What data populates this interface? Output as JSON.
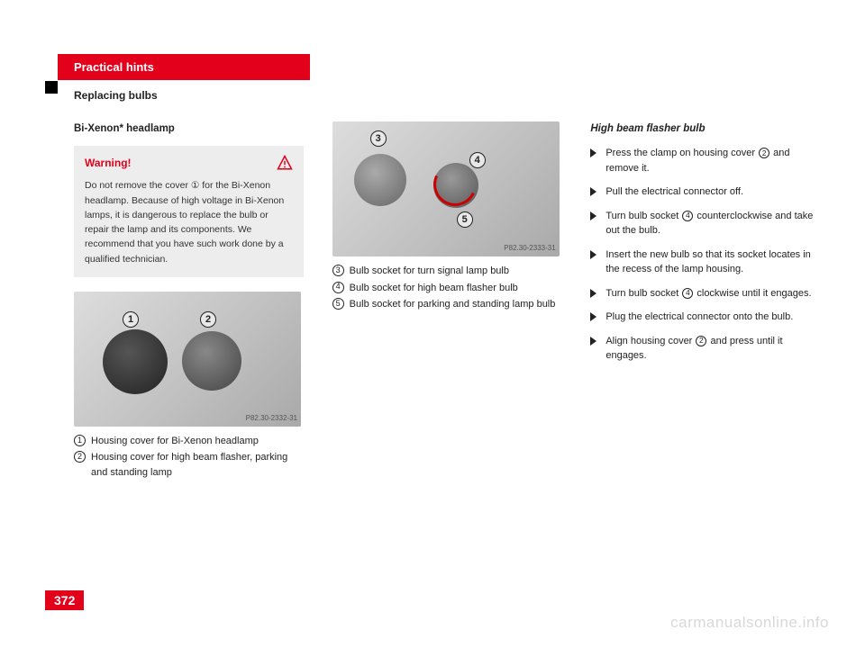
{
  "header": {
    "chapter": "Practical hints",
    "section": "Replacing bulbs"
  },
  "col1": {
    "title": "Bi-Xenon* headlamp",
    "warning": {
      "label": "Warning!",
      "text": "Do not remove the cover ① for the Bi-Xenon headlamp. Because of high voltage in Bi-Xenon lamps, it is dangerous to replace the bulb or repair the lamp and its components. We recommend that you have such work done by a qualified technician."
    },
    "fig1": {
      "caption": "P82.30-2332-31",
      "callouts": {
        "c1": "1",
        "c2": "2"
      }
    },
    "legend": [
      {
        "n": "1",
        "t": "Housing cover for Bi-Xenon headlamp"
      },
      {
        "n": "2",
        "t": "Housing cover for high beam flasher, parking and standing lamp"
      }
    ]
  },
  "col2": {
    "fig2": {
      "caption": "P82.30-2333-31",
      "callouts": {
        "c3": "3",
        "c4": "4",
        "c5": "5"
      }
    },
    "legend": [
      {
        "n": "3",
        "t": "Bulb socket for turn signal lamp bulb"
      },
      {
        "n": "4",
        "t": "Bulb socket for high beam flasher bulb"
      },
      {
        "n": "5",
        "t": "Bulb socket for parking and standing lamp bulb"
      }
    ]
  },
  "col3": {
    "title": "High beam flasher bulb",
    "steps": [
      {
        "pre": "Press the clamp on housing cover ",
        "n": "2",
        "post": " and remove it."
      },
      {
        "pre": "Pull the electrical connector off.",
        "n": "",
        "post": ""
      },
      {
        "pre": "Turn bulb socket ",
        "n": "4",
        "post": " counterclockwise and take out the bulb."
      },
      {
        "pre": "Insert the new bulb so that its socket locates in the recess of the lamp housing.",
        "n": "",
        "post": ""
      },
      {
        "pre": "Turn bulb socket ",
        "n": "4",
        "post": " clockwise until it engages."
      },
      {
        "pre": "Plug the electrical connector onto the bulb.",
        "n": "",
        "post": ""
      },
      {
        "pre": "Align housing cover ",
        "n": "2",
        "post": " and press until it engages."
      }
    ]
  },
  "page_number": "372",
  "watermark": "carmanualsonline.info"
}
